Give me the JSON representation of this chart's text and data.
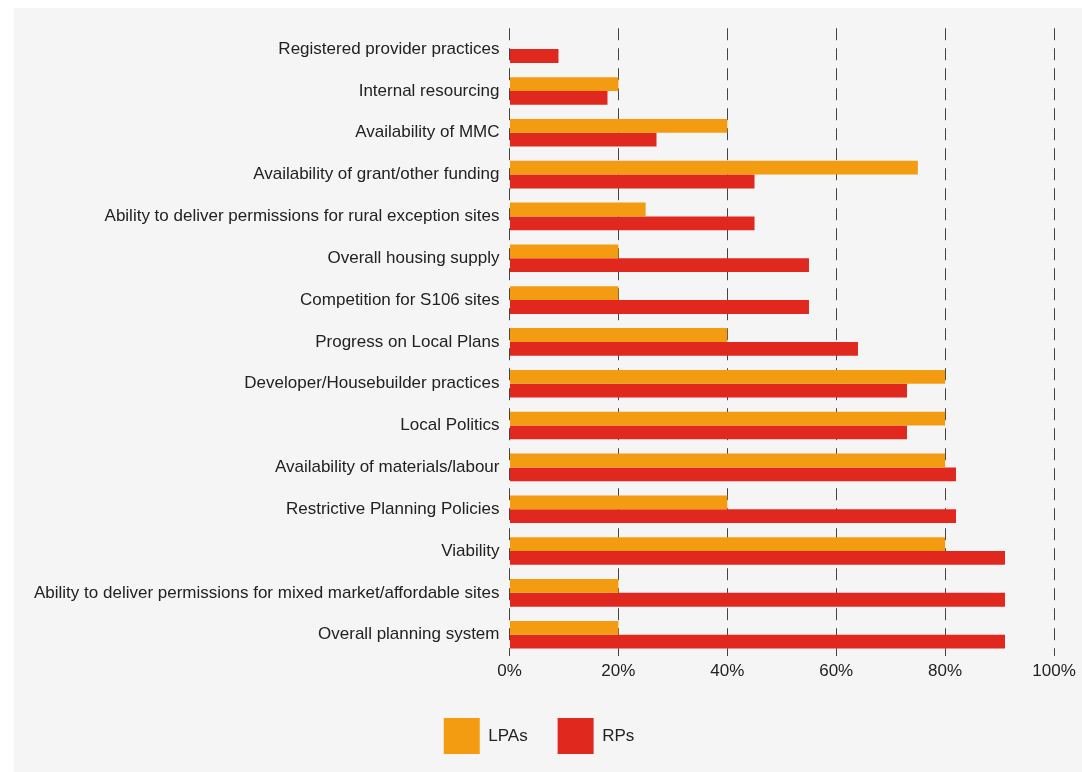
{
  "chart_data": {
    "type": "bar",
    "orientation": "horizontal",
    "categories": [
      "Registered provider practices",
      "Internal resourcing",
      "Availability of MMC",
      "Availability of grant/other funding",
      "Ability to deliver permissions for rural exception sites",
      "Overall housing supply",
      "Competition for S106 sites",
      "Progress on Local Plans",
      "Developer/Housebuilder practices",
      "Local Politics",
      "Availability of materials/labour",
      "Restrictive Planning Policies",
      "Viability",
      "Ability to deliver permissions for mixed market/affordable sites",
      "Overall planning system"
    ],
    "series": [
      {
        "name": "LPAs",
        "color": "#f39c12",
        "values": [
          null,
          20,
          40,
          75,
          25,
          20,
          20,
          40,
          80,
          80,
          80,
          40,
          80,
          20,
          20
        ]
      },
      {
        "name": "RPs",
        "color": "#e0281f",
        "values": [
          9,
          18,
          27,
          45,
          45,
          55,
          55,
          64,
          73,
          73,
          82,
          82,
          91,
          91,
          91
        ]
      }
    ],
    "xlim": [
      0,
      100
    ],
    "xticks": [
      {
        "value": 0,
        "label": "0%"
      },
      {
        "value": 20,
        "label": "20%"
      },
      {
        "value": 40,
        "label": "40%"
      },
      {
        "value": 60,
        "label": "60%"
      },
      {
        "value": 80,
        "label": "80%"
      },
      {
        "value": 100,
        "label": "100%"
      }
    ],
    "grid": "x",
    "legend": "bottom"
  }
}
